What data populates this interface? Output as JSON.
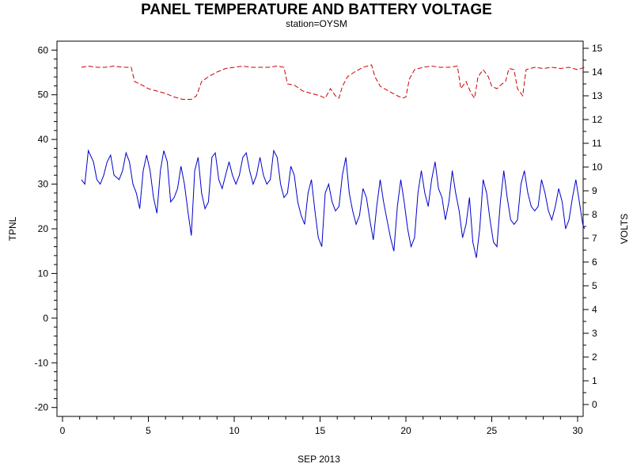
{
  "chart_data": {
    "type": "line",
    "title": "PANEL TEMPERATURE AND BATTERY VOLTAGE",
    "subtitle": "station=OYSM",
    "xlabel": "SEP 2013",
    "ylabel_left": "TPNL",
    "ylabel_right": "VOLTS",
    "xlim": [
      0,
      30
    ],
    "ylim_left": [
      -22,
      62
    ],
    "ylim_right": [
      -0.5,
      15.3
    ],
    "x_ticks": [
      0,
      5,
      10,
      15,
      20,
      25,
      30
    ],
    "y_left_ticks": [
      -20,
      -10,
      0,
      10,
      20,
      30,
      40,
      50,
      60
    ],
    "y_right_ticks": [
      0,
      1,
      2,
      3,
      4,
      5,
      6,
      7,
      8,
      9,
      10,
      11,
      12,
      13,
      14,
      15
    ],
    "grid": false,
    "legend": "none",
    "series": [
      {
        "axis": "left",
        "color": "#0000cc",
        "style": "solid",
        "points": [
          [
            1.1,
            31
          ],
          [
            1.3,
            30
          ],
          [
            1.5,
            37.5
          ],
          [
            1.8,
            35
          ],
          [
            2.0,
            31
          ],
          [
            2.2,
            30
          ],
          [
            2.4,
            32
          ],
          [
            2.6,
            35
          ],
          [
            2.8,
            36.5
          ],
          [
            3.0,
            32
          ],
          [
            3.3,
            31
          ],
          [
            3.5,
            33
          ],
          [
            3.7,
            37
          ],
          [
            3.9,
            35
          ],
          [
            4.1,
            30
          ],
          [
            4.3,
            28
          ],
          [
            4.5,
            24.5
          ],
          [
            4.7,
            33
          ],
          [
            4.9,
            36.5
          ],
          [
            5.1,
            33
          ],
          [
            5.3,
            27
          ],
          [
            5.5,
            23.5
          ],
          [
            5.7,
            33
          ],
          [
            5.9,
            37.5
          ],
          [
            6.1,
            35
          ],
          [
            6.3,
            26
          ],
          [
            6.5,
            27
          ],
          [
            6.7,
            29
          ],
          [
            6.9,
            34
          ],
          [
            7.1,
            30
          ],
          [
            7.3,
            24
          ],
          [
            7.5,
            18.5
          ],
          [
            7.7,
            33
          ],
          [
            7.9,
            36
          ],
          [
            8.1,
            28
          ],
          [
            8.3,
            24.5
          ],
          [
            8.5,
            26
          ],
          [
            8.7,
            36
          ],
          [
            8.9,
            37
          ],
          [
            9.1,
            31
          ],
          [
            9.3,
            29
          ],
          [
            9.5,
            32
          ],
          [
            9.7,
            35
          ],
          [
            9.9,
            32
          ],
          [
            10.1,
            30
          ],
          [
            10.3,
            32
          ],
          [
            10.5,
            36
          ],
          [
            10.7,
            37
          ],
          [
            10.9,
            33
          ],
          [
            11.1,
            30
          ],
          [
            11.3,
            32
          ],
          [
            11.5,
            36
          ],
          [
            11.7,
            32
          ],
          [
            11.9,
            30
          ],
          [
            12.1,
            31
          ],
          [
            12.3,
            37.5
          ],
          [
            12.5,
            36
          ],
          [
            12.7,
            30
          ],
          [
            12.9,
            27
          ],
          [
            13.1,
            28
          ],
          [
            13.3,
            34
          ],
          [
            13.5,
            32
          ],
          [
            13.7,
            26
          ],
          [
            13.9,
            23
          ],
          [
            14.1,
            21
          ],
          [
            14.3,
            28
          ],
          [
            14.5,
            31
          ],
          [
            14.7,
            24
          ],
          [
            14.9,
            18
          ],
          [
            15.1,
            16
          ],
          [
            15.3,
            28
          ],
          [
            15.5,
            30
          ],
          [
            15.7,
            26
          ],
          [
            15.9,
            24
          ],
          [
            16.1,
            25
          ],
          [
            16.3,
            32
          ],
          [
            16.5,
            36
          ],
          [
            16.7,
            28
          ],
          [
            16.9,
            24
          ],
          [
            17.1,
            21
          ],
          [
            17.3,
            23
          ],
          [
            17.5,
            29
          ],
          [
            17.7,
            27
          ],
          [
            17.9,
            22
          ],
          [
            18.1,
            17.5
          ],
          [
            18.3,
            25
          ],
          [
            18.5,
            31
          ],
          [
            18.7,
            26
          ],
          [
            18.9,
            22
          ],
          [
            19.1,
            18
          ],
          [
            19.3,
            15
          ],
          [
            19.5,
            25
          ],
          [
            19.7,
            31
          ],
          [
            19.9,
            26
          ],
          [
            20.1,
            20
          ],
          [
            20.3,
            16
          ],
          [
            20.5,
            18
          ],
          [
            20.7,
            28
          ],
          [
            20.9,
            33
          ],
          [
            21.1,
            28
          ],
          [
            21.3,
            25
          ],
          [
            21.5,
            31
          ],
          [
            21.7,
            35
          ],
          [
            21.9,
            29
          ],
          [
            22.1,
            27
          ],
          [
            22.3,
            22
          ],
          [
            22.5,
            26
          ],
          [
            22.7,
            33
          ],
          [
            22.9,
            28
          ],
          [
            23.1,
            24
          ],
          [
            23.3,
            18
          ],
          [
            23.5,
            21
          ],
          [
            23.7,
            27
          ],
          [
            23.9,
            17
          ],
          [
            24.1,
            13.5
          ],
          [
            24.3,
            20
          ],
          [
            24.5,
            31
          ],
          [
            24.7,
            28
          ],
          [
            24.9,
            22
          ],
          [
            25.1,
            17
          ],
          [
            25.3,
            16
          ],
          [
            25.5,
            26
          ],
          [
            25.7,
            33
          ],
          [
            25.9,
            27
          ],
          [
            26.1,
            22
          ],
          [
            26.3,
            21
          ],
          [
            26.5,
            22
          ],
          [
            26.7,
            30
          ],
          [
            26.9,
            33
          ],
          [
            27.1,
            28
          ],
          [
            27.3,
            25
          ],
          [
            27.5,
            24
          ],
          [
            27.7,
            25
          ],
          [
            27.9,
            31
          ],
          [
            28.1,
            28
          ],
          [
            28.3,
            24
          ],
          [
            28.5,
            22
          ],
          [
            28.7,
            25
          ],
          [
            28.9,
            29
          ],
          [
            29.1,
            26
          ],
          [
            29.3,
            20
          ],
          [
            29.5,
            22
          ],
          [
            29.7,
            27
          ],
          [
            29.9,
            31
          ],
          [
            30.1,
            26
          ],
          [
            30.3,
            21
          ],
          [
            30.4,
            20
          ]
        ]
      },
      {
        "axis": "right",
        "color": "#cc0000",
        "style": "dashed",
        "points": [
          [
            1.1,
            14.2
          ],
          [
            1.5,
            14.25
          ],
          [
            2.0,
            14.2
          ],
          [
            2.5,
            14.2
          ],
          [
            3.0,
            14.25
          ],
          [
            3.5,
            14.2
          ],
          [
            4.0,
            14.2
          ],
          [
            4.2,
            13.6
          ],
          [
            4.5,
            13.5
          ],
          [
            5.0,
            13.3
          ],
          [
            5.5,
            13.2
          ],
          [
            6.0,
            13.1
          ],
          [
            6.5,
            12.95
          ],
          [
            7.0,
            12.85
          ],
          [
            7.5,
            12.85
          ],
          [
            7.8,
            13.0
          ],
          [
            8.1,
            13.6
          ],
          [
            8.5,
            13.8
          ],
          [
            9.0,
            14.0
          ],
          [
            9.5,
            14.15
          ],
          [
            10.0,
            14.2
          ],
          [
            10.5,
            14.25
          ],
          [
            11.0,
            14.2
          ],
          [
            11.5,
            14.2
          ],
          [
            12.0,
            14.2
          ],
          [
            12.5,
            14.25
          ],
          [
            12.9,
            14.2
          ],
          [
            13.1,
            13.5
          ],
          [
            13.5,
            13.45
          ],
          [
            14.0,
            13.2
          ],
          [
            14.5,
            13.1
          ],
          [
            15.0,
            13.0
          ],
          [
            15.3,
            12.9
          ],
          [
            15.6,
            13.3
          ],
          [
            15.9,
            13.0
          ],
          [
            16.1,
            12.9
          ],
          [
            16.3,
            13.4
          ],
          [
            16.6,
            13.8
          ],
          [
            17.0,
            14.0
          ],
          [
            17.5,
            14.2
          ],
          [
            18.0,
            14.3
          ],
          [
            18.2,
            13.8
          ],
          [
            18.5,
            13.4
          ],
          [
            19.0,
            13.2
          ],
          [
            19.5,
            13.0
          ],
          [
            19.8,
            12.9
          ],
          [
            20.0,
            12.95
          ],
          [
            20.2,
            13.7
          ],
          [
            20.5,
            14.1
          ],
          [
            21.0,
            14.2
          ],
          [
            21.5,
            14.25
          ],
          [
            22.0,
            14.2
          ],
          [
            22.5,
            14.2
          ],
          [
            23.0,
            14.25
          ],
          [
            23.2,
            13.3
          ],
          [
            23.5,
            13.6
          ],
          [
            23.8,
            13.1
          ],
          [
            24.0,
            12.9
          ],
          [
            24.2,
            13.8
          ],
          [
            24.5,
            14.1
          ],
          [
            24.8,
            13.8
          ],
          [
            25.0,
            13.4
          ],
          [
            25.3,
            13.3
          ],
          [
            25.6,
            13.5
          ],
          [
            25.8,
            13.6
          ],
          [
            26.0,
            14.15
          ],
          [
            26.3,
            14.1
          ],
          [
            26.5,
            13.3
          ],
          [
            26.8,
            13.0
          ],
          [
            27.0,
            14.1
          ],
          [
            27.5,
            14.2
          ],
          [
            28.0,
            14.15
          ],
          [
            28.5,
            14.2
          ],
          [
            29.0,
            14.15
          ],
          [
            29.5,
            14.2
          ],
          [
            30.0,
            14.1
          ],
          [
            30.4,
            14.2
          ]
        ]
      }
    ]
  }
}
